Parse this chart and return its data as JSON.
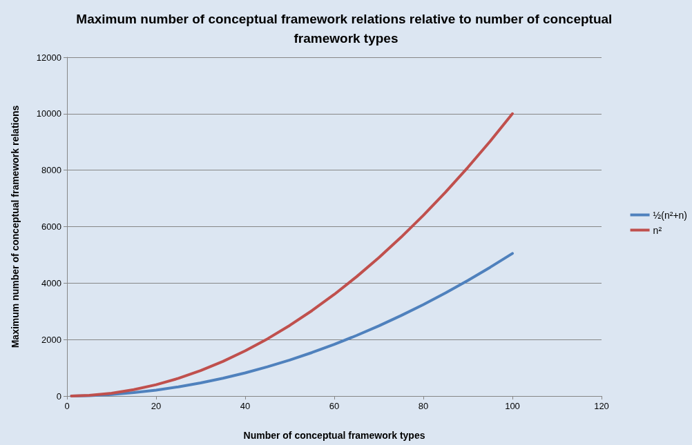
{
  "chart_data": {
    "type": "line",
    "title": "Maximum number of conceptual framework relations relative to number of conceptual framework types",
    "xlabel": "Number of conceptual framework types",
    "ylabel": "Maximum number of conceptual framework relations",
    "x": [
      1,
      5,
      10,
      15,
      20,
      25,
      30,
      35,
      40,
      45,
      50,
      55,
      60,
      65,
      70,
      75,
      80,
      85,
      90,
      95,
      100
    ],
    "series": [
      {
        "name": "½(n²+n)",
        "color": "#4f81bd",
        "values": [
          1,
          15,
          55,
          120,
          210,
          325,
          465,
          630,
          820,
          1035,
          1275,
          1540,
          1830,
          2145,
          2485,
          2850,
          3240,
          3655,
          4095,
          4560,
          5050
        ]
      },
      {
        "name": "n²",
        "color": "#c0504d",
        "values": [
          1,
          25,
          100,
          225,
          400,
          625,
          900,
          1225,
          1600,
          2025,
          2500,
          3025,
          3600,
          4225,
          4900,
          5625,
          6400,
          7225,
          8100,
          9025,
          10000
        ]
      }
    ],
    "xlim": [
      0,
      120
    ],
    "xticks": [
      0,
      20,
      40,
      60,
      80,
      100,
      120
    ],
    "ylim": [
      0,
      12000
    ],
    "yticks": [
      0,
      2000,
      4000,
      6000,
      8000,
      10000,
      12000
    ],
    "grid": "y",
    "legend": "right",
    "marker": "none",
    "line_style": "solid"
  }
}
